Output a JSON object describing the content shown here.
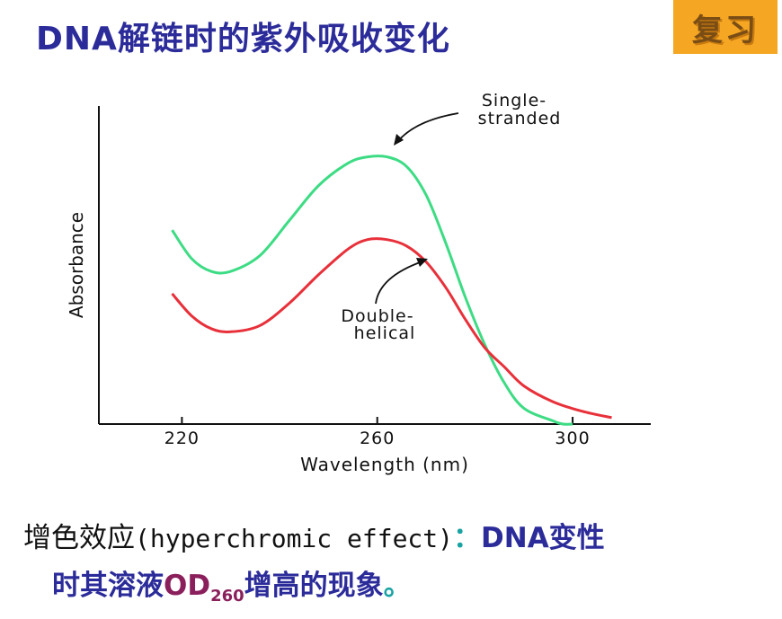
{
  "title": "DNA解链时的紫外吸收变化",
  "badge": "复习",
  "chart_data": {
    "type": "line",
    "xlabel": "Wavelength (nm)",
    "ylabel": "Absorbance",
    "x_ticks": [
      "220",
      "260",
      "300"
    ],
    "x_tick_values": [
      220,
      260,
      300
    ],
    "xlim": [
      203,
      316
    ],
    "ylim": [
      0,
      1
    ],
    "series": [
      {
        "name": "Single-\nstranded",
        "color": "#3ddc84",
        "x": [
          218,
          222,
          226,
          230,
          236,
          242,
          248,
          254,
          258,
          262,
          266,
          270,
          274,
          278,
          282,
          286,
          290,
          296,
          298,
          300
        ],
        "y": [
          0.61,
          0.52,
          0.48,
          0.48,
          0.53,
          0.64,
          0.75,
          0.82,
          0.84,
          0.84,
          0.81,
          0.72,
          0.57,
          0.4,
          0.25,
          0.13,
          0.05,
          0.01,
          0.0,
          0.0
        ]
      },
      {
        "name": "Double-\nhelical",
        "color": "#e8303a",
        "x": [
          218,
          222,
          226,
          230,
          236,
          242,
          248,
          254,
          258,
          262,
          266,
          270,
          274,
          278,
          282,
          286,
          290,
          296,
          302,
          308
        ],
        "y": [
          0.41,
          0.34,
          0.3,
          0.29,
          0.31,
          0.38,
          0.47,
          0.55,
          0.58,
          0.58,
          0.56,
          0.51,
          0.43,
          0.33,
          0.24,
          0.18,
          0.12,
          0.07,
          0.04,
          0.02
        ]
      }
    ],
    "annotations": [
      "Single-\nstranded",
      "Double-\nhelical"
    ]
  },
  "caption": {
    "part1": "增色效应",
    "part2": "(hyperchromic effect)",
    "part3": "：",
    "part4": "DNA变性",
    "line2a": "时其溶液",
    "line2_od": "OD",
    "line2_sub": "260",
    "line2b": "增高的现象",
    "line2_end": "。"
  }
}
